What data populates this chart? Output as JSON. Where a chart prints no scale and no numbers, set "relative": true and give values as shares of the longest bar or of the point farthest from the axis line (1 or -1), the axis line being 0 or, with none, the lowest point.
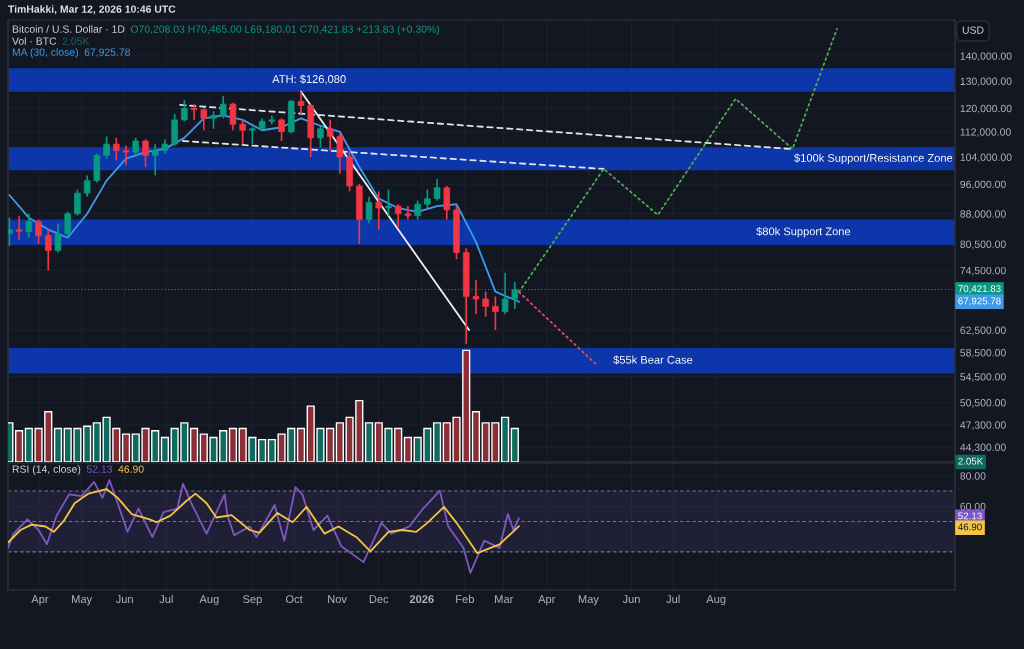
{
  "chart_data": [
    {
      "type": "candlestick",
      "title": "Bitcoin / U.S. Dollar · 1D",
      "log": true,
      "grid": true,
      "tick_labels": "y",
      "annotations": [
        "TimHakki, Mar 12, 2026 10:46 UTC",
        "O70,208.03 H70,465.00 L69,180.01 C70,421.83 +213.83 (+0.30%)",
        "USD",
        "67,925.78",
        "67,925.78"
      ],
      "x": [
        "2025-03-10",
        "2025-03-17",
        "2025-03-24",
        "2025-03-31",
        "2025-04-07",
        "2025-04-14",
        "2025-04-21",
        "2025-04-28",
        "2025-05-05",
        "2025-05-12",
        "2025-05-19",
        "2025-05-26",
        "2025-06-02",
        "2025-06-09",
        "2025-06-16",
        "2025-06-23",
        "2025-06-30",
        "2025-07-07",
        "2025-07-14",
        "2025-07-21",
        "2025-07-28",
        "2025-08-04",
        "2025-08-11",
        "2025-08-18",
        "2025-08-25",
        "2025-09-01",
        "2025-09-08",
        "2025-09-15",
        "2025-09-22",
        "2025-09-29",
        "2025-10-06",
        "2025-10-13",
        "2025-10-20",
        "2025-10-27",
        "2025-11-03",
        "2025-11-10",
        "2025-11-17",
        "2025-11-24",
        "2025-12-01",
        "2025-12-08",
        "2025-12-15",
        "2025-12-22",
        "2025-12-29",
        "2026-01-05",
        "2026-01-12",
        "2026-01-19",
        "2026-01-26",
        "2026-02-02",
        "2026-02-09",
        "2026-02-16",
        "2026-02-23",
        "2026-03-02",
        "2026-03-09"
      ],
      "ohlc": [
        [
          83000,
          87000,
          80000,
          84000
        ],
        [
          84000,
          87500,
          81500,
          83500
        ],
        [
          83500,
          88000,
          82000,
          86000
        ],
        [
          86000,
          86500,
          80500,
          82500
        ],
        [
          82500,
          84000,
          74500,
          79000
        ],
        [
          79000,
          85500,
          78500,
          83000
        ],
        [
          83000,
          88500,
          82500,
          88000
        ],
        [
          88000,
          94500,
          87500,
          93500
        ],
        [
          93500,
          98500,
          92500,
          97000
        ],
        [
          97000,
          105000,
          96500,
          104500
        ],
        [
          104500,
          110500,
          103500,
          108000
        ],
        [
          108000,
          110000,
          103000,
          106000
        ],
        [
          106000,
          107500,
          101500,
          105500
        ],
        [
          105500,
          110000,
          104000,
          109000
        ],
        [
          109000,
          109500,
          101000,
          104500
        ],
        [
          104500,
          108000,
          98500,
          106000
        ],
        [
          106000,
          109500,
          105000,
          108000
        ],
        [
          108000,
          118000,
          107500,
          116000
        ],
        [
          116000,
          123000,
          115500,
          120000
        ],
        [
          120000,
          121500,
          116000,
          119500
        ],
        [
          119500,
          120000,
          112500,
          116500
        ],
        [
          116500,
          119000,
          113000,
          117500
        ],
        [
          117500,
          124500,
          116500,
          121500
        ],
        [
          121500,
          122000,
          112500,
          114500
        ],
        [
          114500,
          116000,
          108000,
          112500
        ],
        [
          112500,
          113500,
          108000,
          113000
        ],
        [
          113000,
          116500,
          112500,
          115500
        ],
        [
          115500,
          117500,
          114500,
          116000
        ],
        [
          116000,
          116500,
          109000,
          112000
        ],
        [
          112000,
          123000,
          111500,
          122500
        ],
        [
          122500,
          126080,
          118000,
          121000
        ],
        [
          121000,
          121500,
          104000,
          110000
        ],
        [
          110000,
          114000,
          107000,
          113000
        ],
        [
          113000,
          116000,
          106000,
          110500
        ],
        [
          110500,
          111500,
          99000,
          104000
        ],
        [
          104000,
          106000,
          94000,
          95500
        ],
        [
          95500,
          96000,
          80500,
          86500
        ],
        [
          86500,
          92500,
          85500,
          91000
        ],
        [
          91000,
          94000,
          84000,
          89500
        ],
        [
          89500,
          94500,
          87500,
          90000
        ],
        [
          90000,
          90500,
          84500,
          88000
        ],
        [
          88000,
          90000,
          86500,
          87500
        ],
        [
          87500,
          91500,
          86500,
          90500
        ],
        [
          90500,
          94500,
          89500,
          92000
        ],
        [
          92000,
          97500,
          91500,
          95000
        ],
        [
          95000,
          95500,
          86500,
          89000
        ],
        [
          89000,
          90000,
          77000,
          78500
        ],
        [
          78500,
          79500,
          60000,
          69000
        ],
        [
          69000,
          72500,
          65500,
          68500
        ],
        [
          68500,
          70000,
          65000,
          67000
        ],
        [
          67000,
          69000,
          62500,
          66000
        ],
        [
          66000,
          74000,
          65500,
          68500
        ],
        [
          68500,
          72000,
          66500,
          70421.83
        ]
      ],
      "colors": [
        "#089981",
        "#f23645",
        "#089981",
        "#f23645",
        "#f23645",
        "#089981",
        "#089981",
        "#089981",
        "#089981",
        "#089981",
        "#089981",
        "#f23645",
        "#f23645",
        "#089981",
        "#f23645",
        "#089981",
        "#089981",
        "#089981",
        "#089981",
        "#f23645",
        "#f23645",
        "#089981",
        "#089981",
        "#f23645",
        "#f23645",
        "#089981",
        "#089981",
        "#089981",
        "#f23645",
        "#089981",
        "#f23645",
        "#f23645",
        "#089981",
        "#f23645",
        "#f23645",
        "#f23645",
        "#f23645",
        "#089981",
        "#f23645",
        "#089981",
        "#f23645",
        "#f23645",
        "#089981",
        "#089981",
        "#089981",
        "#f23645",
        "#f23645",
        "#f23645",
        "#f23645",
        "#f23645",
        "#f23645",
        "#089981",
        "#089981"
      ],
      "series": [
        {
          "type": "line",
          "name": "MA (30, close)",
          "color": "#3d9be9",
          "line_style": "solid",
          "x": [
            "2025-03-10",
            "2025-03-24",
            "2025-04-07",
            "2025-04-21",
            "2025-05-05",
            "2025-05-19",
            "2025-06-02",
            "2025-06-16",
            "2025-06-30",
            "2025-07-14",
            "2025-07-28",
            "2025-08-11",
            "2025-08-25",
            "2025-09-08",
            "2025-09-22",
            "2025-10-06",
            "2025-10-20",
            "2025-11-03",
            "2025-11-17",
            "2025-12-01",
            "2025-12-15",
            "2025-12-29",
            "2026-01-12",
            "2026-01-26",
            "2026-02-09",
            "2026-02-23",
            "2026-03-12"
          ],
          "values": [
            93000,
            87000,
            84000,
            82000,
            88000,
            97000,
            103500,
            105500,
            106500,
            110000,
            116500,
            117500,
            116000,
            112500,
            113500,
            116500,
            114000,
            112000,
            101000,
            92000,
            89500,
            88500,
            90000,
            90500,
            81000,
            70000,
            67925.78
          ]
        },
        {
          "type": "line",
          "color": "#e0e3eb",
          "line_style": "dashed",
          "x": [
            "2025-07-11",
            "2026-09-23"
          ],
          "values": [
            121200,
            106500
          ]
        },
        {
          "type": "line",
          "color": "#e0e3eb",
          "line_style": "dashed",
          "x": [
            "2025-07-13",
            "2026-05-12"
          ],
          "values": [
            109000,
            100400
          ]
        },
        {
          "type": "line",
          "color": "#f0f0f0",
          "line_style": "solid",
          "x": [
            "2025-10-06",
            "2026-02-04"
          ],
          "values": [
            126080,
            62500
          ]
        },
        {
          "type": "line",
          "color": "#4caf50",
          "line_style": "dotted",
          "x": [
            "2026-03-12",
            "2026-05-12",
            "2026-06-20",
            "2026-08-15",
            "2026-09-25",
            "2026-10-27"
          ],
          "values": [
            69900,
            100400,
            87700,
            123400,
            106500,
            151600
          ]
        },
        {
          "type": "line",
          "color": "#e04a5a",
          "line_style": "dotted",
          "x": [
            "2026-03-12",
            "2026-05-07"
          ],
          "values": [
            69900,
            56400
          ]
        }
      ],
      "bands": [
        {
          "axis": "y",
          "from": 126000,
          "to": 135000,
          "label": "ATH: $126,080",
          "color": "#0c3ab8"
        },
        {
          "axis": "y",
          "from": 100000,
          "to": 107000,
          "label": "$100k Support/Resistance Zone",
          "color": "#0c3ab8"
        },
        {
          "axis": "y",
          "from": 80300,
          "to": 86500,
          "label": "$80k Support Zone",
          "color": "#0c3ab8"
        },
        {
          "axis": "y",
          "from": 55000,
          "to": 59300,
          "label": "$55k Bear Case",
          "color": "#0c3ab8"
        }
      ],
      "ref_lines": [
        {
          "axis": "y",
          "value": 70421.83,
          "label": "70,421.83",
          "color": "#089981",
          "line_style": "dotted"
        }
      ],
      "xlim": [
        "2025-03-09",
        "2027-01-20"
      ],
      "ylim": [
        42400,
        155600
      ],
      "xticks": [
        {
          "value": "2025-04-01",
          "label": null
        },
        {
          "value": "2025-05-01",
          "label": null
        },
        {
          "value": "2025-06-01",
          "label": null
        },
        {
          "value": "2025-07-01",
          "label": null
        },
        {
          "value": "2025-08-01",
          "label": null
        },
        {
          "value": "2025-09-01",
          "label": null
        },
        {
          "value": "2025-10-01",
          "label": null
        },
        {
          "value": "2025-11-01",
          "label": null
        },
        {
          "value": "2025-12-01",
          "label": null
        },
        {
          "value": "2026-01-01",
          "label": null
        },
        {
          "value": "2026-02-01",
          "label": null
        },
        {
          "value": "2026-03-01",
          "label": null
        },
        {
          "value": "2026-04-01",
          "label": null
        },
        {
          "value": "2026-05-01",
          "label": null
        },
        {
          "value": "2026-06-01",
          "label": null
        },
        {
          "value": "2026-07-01",
          "label": null
        },
        {
          "value": "2026-08-01",
          "label": null
        }
      ],
      "yticks": [
        {
          "value": 44300,
          "label": "44,300.00"
        },
        {
          "value": 47300,
          "label": "47,300.00"
        },
        {
          "value": 50500,
          "label": "50,500.00"
        },
        {
          "value": 54500,
          "label": "54,500.00"
        },
        {
          "value": 58500,
          "label": "58,500.00"
        },
        {
          "value": 62500,
          "label": "62,500.00"
        },
        {
          "value": 74500,
          "label": "74,500.00"
        },
        {
          "value": 80500,
          "label": "80,500.00"
        },
        {
          "value": 88000,
          "label": "88,000.00"
        },
        {
          "value": 96000,
          "label": "96,000.00"
        },
        {
          "value": 104000,
          "label": "104,000.00"
        },
        {
          "value": 112000,
          "label": "112,000.00"
        },
        {
          "value": 120000,
          "label": "120,000.00"
        },
        {
          "value": 130000,
          "label": "130,000.00"
        },
        {
          "value": 140000,
          "label": "140,000.00"
        }
      ]
    },
    {
      "type": "bar",
      "relative": true,
      "title": "Vol · BTC",
      "tick_labels": false,
      "annotations": [
        "2.05K",
        "2.05K"
      ],
      "x": [
        "2025-03-10",
        "2025-03-17",
        "2025-03-24",
        "2025-03-31",
        "2025-04-07",
        "2025-04-14",
        "2025-04-21",
        "2025-04-28",
        "2025-05-05",
        "2025-05-12",
        "2025-05-19",
        "2025-05-26",
        "2025-06-02",
        "2025-06-09",
        "2025-06-16",
        "2025-06-23",
        "2025-06-30",
        "2025-07-07",
        "2025-07-14",
        "2025-07-21",
        "2025-07-28",
        "2025-08-04",
        "2025-08-11",
        "2025-08-18",
        "2025-08-25",
        "2025-09-01",
        "2025-09-08",
        "2025-09-15",
        "2025-09-22",
        "2025-09-29",
        "2025-10-06",
        "2025-10-13",
        "2025-10-20",
        "2025-10-27",
        "2025-11-03",
        "2025-11-10",
        "2025-11-17",
        "2025-11-24",
        "2025-12-01",
        "2025-12-08",
        "2025-12-15",
        "2025-12-22",
        "2025-12-29",
        "2026-01-05",
        "2026-01-12",
        "2026-01-19",
        "2026-01-26",
        "2026-02-02",
        "2026-02-09",
        "2026-02-16",
        "2026-02-23",
        "2026-03-02",
        "2026-03-09"
      ],
      "values": [
        0.35,
        0.28,
        0.3,
        0.3,
        0.45,
        0.3,
        0.3,
        0.3,
        0.32,
        0.35,
        0.4,
        0.3,
        0.25,
        0.25,
        0.3,
        0.28,
        0.22,
        0.3,
        0.35,
        0.3,
        0.25,
        0.22,
        0.28,
        0.3,
        0.3,
        0.22,
        0.2,
        0.2,
        0.25,
        0.3,
        0.3,
        0.5,
        0.3,
        0.3,
        0.35,
        0.4,
        0.55,
        0.35,
        0.35,
        0.3,
        0.3,
        0.22,
        0.22,
        0.3,
        0.35,
        0.35,
        0.4,
        1.0,
        0.45,
        0.35,
        0.35,
        0.4,
        0.3
      ],
      "colors": [
        "#0f6b5f",
        "#8c2e36",
        "#0f6b5f",
        "#8c2e36",
        "#8c2e36",
        "#0f6b5f",
        "#0f6b5f",
        "#0f6b5f",
        "#0f6b5f",
        "#0f6b5f",
        "#0f6b5f",
        "#8c2e36",
        "#8c2e36",
        "#0f6b5f",
        "#8c2e36",
        "#0f6b5f",
        "#0f6b5f",
        "#0f6b5f",
        "#0f6b5f",
        "#8c2e36",
        "#8c2e36",
        "#0f6b5f",
        "#0f6b5f",
        "#8c2e36",
        "#8c2e36",
        "#0f6b5f",
        "#0f6b5f",
        "#0f6b5f",
        "#8c2e36",
        "#0f6b5f",
        "#8c2e36",
        "#8c2e36",
        "#0f6b5f",
        "#8c2e36",
        "#8c2e36",
        "#8c2e36",
        "#8c2e36",
        "#0f6b5f",
        "#8c2e36",
        "#0f6b5f",
        "#8c2e36",
        "#8c2e36",
        "#0f6b5f",
        "#0f6b5f",
        "#0f6b5f",
        "#8c2e36",
        "#8c2e36",
        "#8c2e36",
        "#8c2e36",
        "#8c2e36",
        "#8c2e36",
        "#0f6b5f",
        "#0f6b5f"
      ],
      "xlim": [
        "2025-03-09",
        "2027-01-20"
      ]
    },
    {
      "type": "line",
      "title": "RSI (14, close)",
      "grid": true,
      "annotations": [
        "52.13",
        "46.90",
        "52.13",
        "46.90"
      ],
      "series": [
        {
          "color": "#7e57c2",
          "x": [
            "2025-03-09",
            "2025-03-13",
            "2025-03-23",
            "2025-03-31",
            "2025-04-06",
            "2025-04-13",
            "2025-04-22",
            "2025-05-01",
            "2025-05-10",
            "2025-05-16",
            "2025-05-21",
            "2025-05-27",
            "2025-06-03",
            "2025-06-11",
            "2025-06-21",
            "2025-06-29",
            "2025-07-09",
            "2025-07-13",
            "2025-07-19",
            "2025-07-30",
            "2025-08-12",
            "2025-08-14",
            "2025-08-19",
            "2025-08-30",
            "2025-09-04",
            "2025-09-17",
            "2025-09-24",
            "2025-10-02",
            "2025-10-07",
            "2025-10-15",
            "2025-10-25",
            "2025-11-04",
            "2025-11-20",
            "2025-12-03",
            "2025-12-10",
            "2025-12-23",
            "2026-01-02",
            "2026-01-14",
            "2026-01-20",
            "2026-01-31",
            "2026-02-05",
            "2026-02-15",
            "2026-02-26",
            "2026-03-04",
            "2026-03-08",
            "2026-03-12"
          ],
          "values": [
            32.7,
            42.0,
            51.4,
            44.4,
            35.0,
            53.8,
            67.8,
            66.6,
            76.0,
            65.5,
            77.2,
            62.0,
            43.2,
            58.5,
            39.7,
            56.1,
            58.5,
            74.8,
            62.0,
            42.0,
            67.8,
            53.8,
            40.9,
            46.7,
            39.7,
            60.8,
            37.4,
            72.5,
            67.8,
            44.4,
            53.8,
            33.8,
            23.3,
            49.1,
            42.0,
            46.7,
            58.5,
            70.2,
            46.7,
            32.7,
            16.3,
            37.4,
            32.7,
            54.9,
            44.4,
            52.13
          ]
        },
        {
          "color": "#f5c542",
          "x": [
            "2025-03-09",
            "2025-03-18",
            "2025-03-26",
            "2025-04-05",
            "2025-04-11",
            "2025-04-18",
            "2025-04-26",
            "2025-05-06",
            "2025-05-19",
            "2025-05-27",
            "2025-06-06",
            "2025-06-19",
            "2025-06-24",
            "2025-07-04",
            "2025-07-15",
            "2025-07-22",
            "2025-07-30",
            "2025-08-06",
            "2025-08-17",
            "2025-08-30",
            "2025-09-06",
            "2025-09-19",
            "2025-09-30",
            "2025-10-10",
            "2025-10-23",
            "2025-11-02",
            "2025-11-15",
            "2025-11-25",
            "2025-12-08",
            "2025-12-18",
            "2025-12-28",
            "2026-01-05",
            "2026-01-17",
            "2026-01-26",
            "2026-02-10",
            "2026-02-26",
            "2026-03-12"
          ],
          "values": [
            36.2,
            44.4,
            47.9,
            46.7,
            43.2,
            50.2,
            62.0,
            68.3,
            71.3,
            65.5,
            54.9,
            51.4,
            49.5,
            53.8,
            63.1,
            68.3,
            62.0,
            52.6,
            54.2,
            44.4,
            42.5,
            55.6,
            49.5,
            59.6,
            42.0,
            46.7,
            39.7,
            30.3,
            43.2,
            44.4,
            43.2,
            49.1,
            59.6,
            49.1,
            29.2,
            35.0,
            46.9
          ]
        }
      ],
      "bands": [
        {
          "axis": "y",
          "from": 30,
          "to": 70,
          "color": "#7e57c2"
        }
      ],
      "ref_lines": [
        {
          "axis": "y",
          "value": 70,
          "color": "#787b86",
          "line_style": "dashed"
        },
        {
          "axis": "y",
          "value": 50,
          "color": "#787b86",
          "line_style": "dashed"
        },
        {
          "axis": "y",
          "value": 30,
          "color": "#787b86",
          "line_style": "dashed"
        }
      ],
      "xlim": [
        "2025-03-09",
        "2027-01-20"
      ],
      "ylim": [
        5,
        88.4
      ],
      "xticks": [
        {
          "value": "2025-04-01",
          "label": "Apr"
        },
        {
          "value": "2025-05-01",
          "label": "May"
        },
        {
          "value": "2025-06-01",
          "label": "Jun"
        },
        {
          "value": "2025-07-01",
          "label": "Jul"
        },
        {
          "value": "2025-08-01",
          "label": "Aug"
        },
        {
          "value": "2025-09-01",
          "label": "Sep"
        },
        {
          "value": "2025-10-01",
          "label": "Oct"
        },
        {
          "value": "2025-11-01",
          "label": "Nov"
        },
        {
          "value": "2025-12-01",
          "label": "Dec"
        },
        {
          "value": "2026-01-01",
          "label": "2026"
        },
        {
          "value": "2026-02-01",
          "label": "Feb"
        },
        {
          "value": "2026-03-01",
          "label": "Mar"
        },
        {
          "value": "2026-04-01",
          "label": "Apr"
        },
        {
          "value": "2026-05-01",
          "label": "May"
        },
        {
          "value": "2026-06-01",
          "label": "Jun"
        },
        {
          "value": "2026-07-01",
          "label": "Jul"
        },
        {
          "value": "2026-08-01",
          "label": "Aug"
        }
      ],
      "yticks": [
        {
          "value": 60,
          "label": "60.00"
        },
        {
          "value": 80,
          "label": "80.00"
        }
      ]
    }
  ]
}
